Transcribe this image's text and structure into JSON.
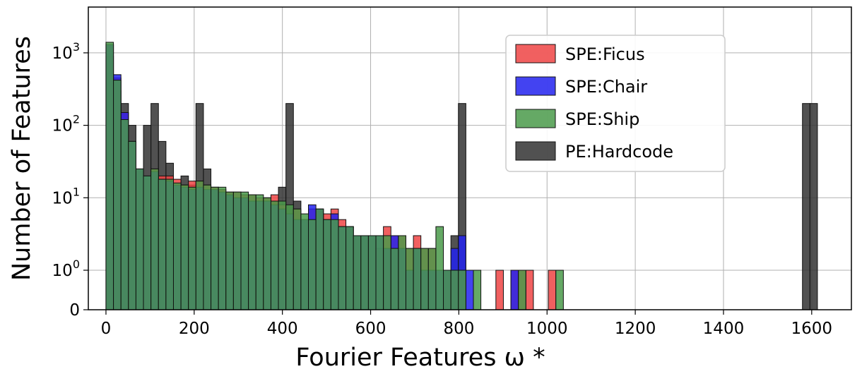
{
  "chart_data": {
    "type": "histogram",
    "xlabel": "Fourier Features ω *",
    "ylabel": "Number of Features",
    "y_scale": "symlog",
    "xlim": [
      -40,
      1690
    ],
    "ylim": [
      0,
      2200
    ],
    "grid": true,
    "legend_placement": "top-right",
    "x_ticks": [
      "0",
      "200",
      "400",
      "600",
      "800",
      "1000",
      "1200",
      "1400",
      "1600"
    ],
    "x_tick_values": [
      0,
      200,
      400,
      600,
      800,
      1000,
      1200,
      1400,
      1600
    ],
    "y_ticks": [
      {
        "value": 0,
        "base": "0",
        "exp": ""
      },
      {
        "value": 1,
        "base": "10",
        "exp": "0"
      },
      {
        "value": 10,
        "base": "10",
        "exp": "1"
      },
      {
        "value": 100,
        "base": "10",
        "exp": "2"
      },
      {
        "value": 1000,
        "base": "10",
        "exp": "3"
      }
    ],
    "bin_width": 17,
    "series": [
      {
        "name": "SPE:Ficus",
        "color": "#ee4444",
        "bins": [
          [
            0,
            1300
          ],
          [
            17,
            450
          ],
          [
            34,
            150
          ],
          [
            51,
            60
          ],
          [
            68,
            25
          ],
          [
            85,
            18
          ],
          [
            102,
            25
          ],
          [
            119,
            20
          ],
          [
            136,
            20
          ],
          [
            153,
            18
          ],
          [
            170,
            15
          ],
          [
            187,
            17
          ],
          [
            204,
            17
          ],
          [
            221,
            15
          ],
          [
            238,
            14
          ],
          [
            255,
            13
          ],
          [
            272,
            12
          ],
          [
            289,
            12
          ],
          [
            306,
            11
          ],
          [
            323,
            11
          ],
          [
            340,
            10
          ],
          [
            357,
            10
          ],
          [
            374,
            11
          ],
          [
            391,
            8
          ],
          [
            408,
            6
          ],
          [
            425,
            7
          ],
          [
            442,
            5
          ],
          [
            459,
            7
          ],
          [
            476,
            7
          ],
          [
            493,
            6
          ],
          [
            510,
            7
          ],
          [
            527,
            5
          ],
          [
            544,
            4
          ],
          [
            561,
            3
          ],
          [
            578,
            3
          ],
          [
            595,
            3
          ],
          [
            612,
            2
          ],
          [
            629,
            4
          ],
          [
            646,
            3
          ],
          [
            663,
            3
          ],
          [
            680,
            2
          ],
          [
            697,
            3
          ],
          [
            714,
            2
          ],
          [
            731,
            2
          ],
          [
            765,
            1
          ],
          [
            782,
            1
          ],
          [
            799,
            1
          ],
          [
            884,
            1
          ],
          [
            918,
            1
          ],
          [
            935,
            1
          ],
          [
            952,
            1
          ],
          [
            1003,
            1
          ]
        ]
      },
      {
        "name": "SPE:Chair",
        "color": "#2222ee",
        "bins": [
          [
            0,
            1300
          ],
          [
            17,
            500
          ],
          [
            34,
            150
          ],
          [
            51,
            60
          ],
          [
            68,
            25
          ],
          [
            85,
            20
          ],
          [
            102,
            23
          ],
          [
            119,
            18
          ],
          [
            136,
            17
          ],
          [
            153,
            15
          ],
          [
            170,
            14
          ],
          [
            187,
            13
          ],
          [
            204,
            14
          ],
          [
            221,
            13
          ],
          [
            238,
            13
          ],
          [
            255,
            12
          ],
          [
            272,
            11
          ],
          [
            289,
            10
          ],
          [
            306,
            10
          ],
          [
            323,
            9
          ],
          [
            340,
            9
          ],
          [
            357,
            9
          ],
          [
            374,
            8
          ],
          [
            391,
            7
          ],
          [
            408,
            6
          ],
          [
            425,
            5
          ],
          [
            442,
            5
          ],
          [
            459,
            8
          ],
          [
            476,
            7
          ],
          [
            493,
            5
          ],
          [
            510,
            6
          ],
          [
            527,
            4
          ],
          [
            544,
            4
          ],
          [
            561,
            3
          ],
          [
            578,
            3
          ],
          [
            595,
            3
          ],
          [
            612,
            3
          ],
          [
            629,
            2
          ],
          [
            646,
            3
          ],
          [
            663,
            2
          ],
          [
            680,
            1
          ],
          [
            697,
            2
          ],
          [
            714,
            1
          ],
          [
            731,
            1
          ],
          [
            748,
            1
          ],
          [
            765,
            1
          ],
          [
            782,
            2
          ],
          [
            799,
            3
          ],
          [
            816,
            1
          ],
          [
            918,
            1
          ]
        ]
      },
      {
        "name": "SPE:Ship",
        "color": "#4a9a4a",
        "bins": [
          [
            0,
            1400
          ],
          [
            17,
            420
          ],
          [
            34,
            120
          ],
          [
            51,
            60
          ],
          [
            68,
            25
          ],
          [
            85,
            20
          ],
          [
            102,
            25
          ],
          [
            119,
            18
          ],
          [
            136,
            18
          ],
          [
            153,
            16
          ],
          [
            170,
            15
          ],
          [
            187,
            14
          ],
          [
            204,
            17
          ],
          [
            221,
            15
          ],
          [
            238,
            14
          ],
          [
            255,
            14
          ],
          [
            272,
            12
          ],
          [
            289,
            12
          ],
          [
            306,
            12
          ],
          [
            323,
            11
          ],
          [
            340,
            11
          ],
          [
            357,
            10
          ],
          [
            374,
            9
          ],
          [
            391,
            9
          ],
          [
            408,
            8
          ],
          [
            425,
            7
          ],
          [
            442,
            6
          ],
          [
            459,
            5
          ],
          [
            476,
            7
          ],
          [
            493,
            5
          ],
          [
            510,
            5
          ],
          [
            527,
            4
          ],
          [
            544,
            4
          ],
          [
            561,
            3
          ],
          [
            578,
            3
          ],
          [
            595,
            3
          ],
          [
            612,
            3
          ],
          [
            629,
            3
          ],
          [
            646,
            2
          ],
          [
            663,
            3
          ],
          [
            680,
            2
          ],
          [
            697,
            2
          ],
          [
            714,
            2
          ],
          [
            731,
            2
          ],
          [
            748,
            4
          ],
          [
            765,
            1
          ],
          [
            782,
            1
          ],
          [
            799,
            1
          ],
          [
            833,
            1
          ],
          [
            935,
            1
          ],
          [
            1020,
            1
          ]
        ]
      },
      {
        "name": "PE:Hardcode",
        "color": "#333333",
        "bins": [
          [
            0,
            900
          ],
          [
            17,
            300
          ],
          [
            34,
            200
          ],
          [
            51,
            100
          ],
          [
            85,
            100
          ],
          [
            102,
            200
          ],
          [
            119,
            60
          ],
          [
            136,
            30
          ],
          [
            170,
            20
          ],
          [
            187,
            15
          ],
          [
            204,
            200
          ],
          [
            221,
            25
          ],
          [
            289,
            10
          ],
          [
            374,
            9
          ],
          [
            391,
            14
          ],
          [
            408,
            200
          ],
          [
            425,
            9
          ],
          [
            782,
            3
          ],
          [
            799,
            200
          ],
          [
            1579,
            200
          ],
          [
            1596,
            200
          ]
        ]
      }
    ]
  }
}
